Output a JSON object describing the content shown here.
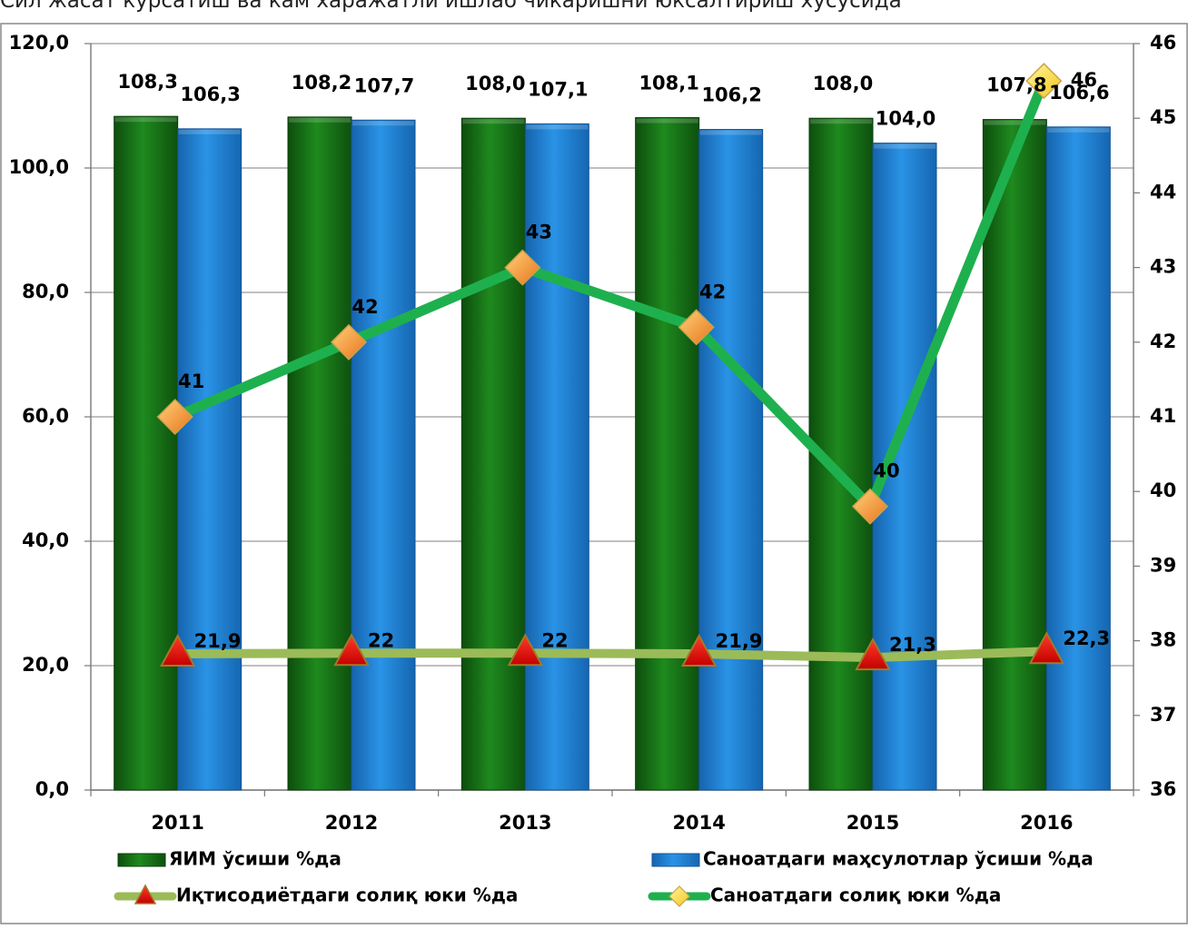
{
  "caption_text": "Сил жасат курсатиш ва кам харажатли ишлаб чикаришни юксалтириш хусусида",
  "chart_data": {
    "type": "bar",
    "categories": [
      "2011",
      "2012",
      "2013",
      "2014",
      "2015",
      "2016"
    ],
    "series": [
      {
        "name": "ЯИМ ўсиши %да",
        "kind": "bar",
        "axis": "left",
        "color": "#1a7a1a",
        "values": [
          108.3,
          108.2,
          108.0,
          108.1,
          108.0,
          107.8
        ],
        "labels": [
          "108,3",
          "108,2",
          "108,0",
          "108,1",
          "108,0",
          "107,8"
        ]
      },
      {
        "name": "Саноатдаги маҳсулотлар ўсиши %да",
        "kind": "bar",
        "axis": "left",
        "color": "#1f82d6",
        "values": [
          106.3,
          107.7,
          107.1,
          106.2,
          104.0,
          106.6
        ],
        "labels": [
          "106,3",
          "107,7",
          "107,1",
          "106,2",
          "104,0",
          "106,6"
        ]
      },
      {
        "name": "Иқтисодиётдаги солиқ юки %да",
        "kind": "line",
        "axis": "left",
        "color": "#9bbb59",
        "marker": "triangle",
        "values": [
          21.9,
          22,
          22,
          21.9,
          21.3,
          22.3
        ],
        "labels": [
          "21,9",
          "22",
          "22",
          "21,9",
          "21,3",
          "22,3"
        ]
      },
      {
        "name": "Саноатдаги солиқ юки %да",
        "kind": "line",
        "axis": "right",
        "color": "#1eb04e",
        "marker": "diamond",
        "values": [
          41,
          42,
          43,
          42.2,
          39.8,
          45.5
        ],
        "labels": [
          "41",
          "42",
          "43",
          "42",
          "40",
          "46"
        ]
      }
    ],
    "y_left": {
      "min": 0,
      "max": 120,
      "step": 20,
      "tick_labels": [
        "0,0",
        "20,0",
        "40,0",
        "60,0",
        "80,0",
        "100,0",
        "120,0"
      ]
    },
    "y_right": {
      "min": 36,
      "max": 46,
      "step": 1,
      "tick_labels": [
        "36",
        "37",
        "38",
        "39",
        "40",
        "41",
        "42",
        "43",
        "44",
        "45",
        "46"
      ]
    },
    "grid": true,
    "legend_position": "bottom"
  }
}
